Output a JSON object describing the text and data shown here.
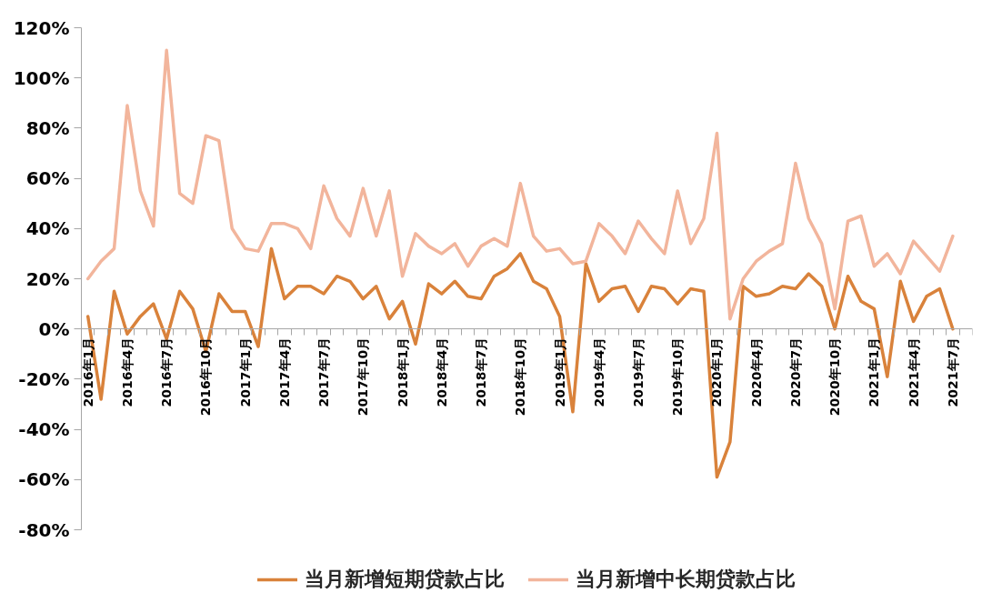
{
  "chart_data": {
    "type": "line",
    "categories": [
      "2016年1月",
      null,
      null,
      "2016年4月",
      null,
      null,
      "2016年7月",
      null,
      null,
      "2016年10月",
      null,
      null,
      "2017年1月",
      null,
      null,
      "2017年4月",
      null,
      null,
      "2017年7月",
      null,
      null,
      "2017年10月",
      null,
      null,
      "2018年1月",
      null,
      null,
      "2018年4月",
      null,
      null,
      "2018年7月",
      null,
      null,
      "2018年10月",
      null,
      null,
      "2019年1月",
      null,
      null,
      "2019年4月",
      null,
      null,
      "2019年7月",
      null,
      null,
      "2019年10月",
      null,
      null,
      "2020年1月",
      null,
      null,
      "2020年4月",
      null,
      null,
      "2020年7月",
      null,
      null,
      "2020年10月",
      null,
      null,
      "2021年1月",
      null,
      null,
      "2021年4月",
      null,
      null,
      "2021年7月",
      null
    ],
    "series": [
      {
        "name": "当月新增短期贷款占比",
        "color": "#d9823b",
        "values": [
          5,
          -28,
          15,
          -2,
          5,
          10,
          -4,
          15,
          8,
          -9,
          14,
          7,
          7,
          -7,
          32,
          12,
          17,
          17,
          14,
          21,
          19,
          12,
          17,
          4,
          11,
          -6,
          18,
          14,
          19,
          13,
          12,
          21,
          24,
          30,
          19,
          16,
          5,
          -33,
          26,
          11,
          16,
          17,
          7,
          17,
          16,
          10,
          16,
          15,
          -59,
          -45,
          17,
          13,
          14,
          17,
          16,
          22,
          17,
          0,
          21,
          11,
          8,
          -19,
          19,
          3,
          13,
          16,
          0,
          null
        ]
      },
      {
        "name": "当月新增中长期贷款占比",
        "color": "#f2b59c",
        "values": [
          20,
          27,
          32,
          89,
          55,
          41,
          111,
          54,
          50,
          77,
          75,
          40,
          32,
          31,
          42,
          42,
          40,
          32,
          57,
          44,
          37,
          56,
          37,
          55,
          21,
          38,
          33,
          30,
          34,
          25,
          33,
          36,
          33,
          58,
          37,
          31,
          32,
          26,
          27,
          42,
          37,
          30,
          43,
          36,
          30,
          55,
          34,
          44,
          78,
          4,
          20,
          27,
          31,
          34,
          66,
          44,
          34,
          8,
          43,
          45,
          25,
          30,
          22,
          35,
          29,
          23,
          37,
          null
        ]
      }
    ],
    "ylim": [
      -80,
      120
    ],
    "yticks": [
      {
        "value": -80,
        "label": "-80%"
      },
      {
        "value": -60,
        "label": "-60%"
      },
      {
        "value": -40,
        "label": "-40%"
      },
      {
        "value": -20,
        "label": "-20%"
      },
      {
        "value": 0,
        "label": "0%"
      },
      {
        "value": 20,
        "label": "20%"
      },
      {
        "value": 40,
        "label": "40%"
      },
      {
        "value": 60,
        "label": "60%"
      },
      {
        "value": 80,
        "label": "80%"
      },
      {
        "value": 100,
        "label": "100%"
      },
      {
        "value": 120,
        "label": "120%"
      }
    ],
    "legend": "bottom"
  }
}
